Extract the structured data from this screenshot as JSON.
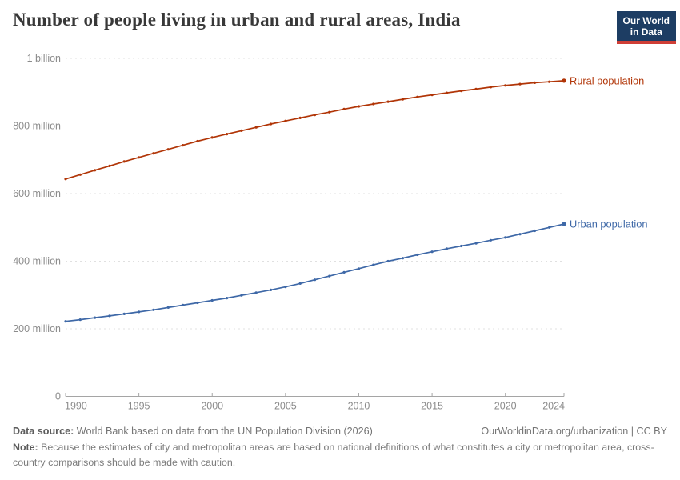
{
  "header": {
    "title": "Number of people living in urban and rural areas, India",
    "logo": {
      "line1": "Our World",
      "line2": "in Data"
    }
  },
  "footer": {
    "source_label": "Data source:",
    "source_text": "World Bank based on data from the UN Population Division (2026)",
    "license_text": "OurWorldinData.org/urbanization | CC BY",
    "note_label": "Note:",
    "note_text": "Because the estimates of city and metropolitan areas are based on national definitions of what constitutes a city or metropolitan area, cross-country comparisons should be made with caution."
  },
  "colors": {
    "title": "#383838",
    "logo_bg": "#1d3d63",
    "logo_stripe": "#cf3e36",
    "rural": "#b13507",
    "urban": "#3e68a7",
    "grid": "#e0e0e0",
    "axis": "#a5a5a5",
    "tick_text": "#8b8b8b"
  },
  "chart_data": {
    "type": "line",
    "title": "Number of people living in urban and rural areas, India",
    "unit": "people (millions)",
    "xlabel": "",
    "ylabel": "",
    "ylim": [
      0,
      1000
    ],
    "grid": "horizontal-dashed",
    "legend_position": "end-of-line-labels",
    "x_ticks": [
      1990,
      1995,
      2000,
      2005,
      2010,
      2015,
      2020,
      2024
    ],
    "y_ticks": [
      {
        "value": 0,
        "label": "0"
      },
      {
        "value": 200,
        "label": "200 million"
      },
      {
        "value": 400,
        "label": "400 million"
      },
      {
        "value": 600,
        "label": "600 million"
      },
      {
        "value": 800,
        "label": "800 million"
      },
      {
        "value": 1000,
        "label": "1 billion"
      }
    ],
    "x": [
      1990,
      1991,
      1992,
      1993,
      1994,
      1995,
      1996,
      1997,
      1998,
      1999,
      2000,
      2001,
      2002,
      2003,
      2004,
      2005,
      2006,
      2007,
      2008,
      2009,
      2010,
      2011,
      2012,
      2013,
      2014,
      2015,
      2016,
      2017,
      2018,
      2019,
      2020,
      2021,
      2022,
      2023,
      2024
    ],
    "series": [
      {
        "name": "Rural population",
        "color_key": "rural",
        "values": [
          643,
          656,
          669,
          682,
          695,
          707,
          719,
          731,
          743,
          755,
          766,
          776,
          786,
          796,
          806,
          815,
          824,
          833,
          841,
          850,
          858,
          865,
          872,
          879,
          886,
          892,
          898,
          904,
          909,
          915,
          920,
          924,
          928,
          931,
          934
        ]
      },
      {
        "name": "Urban population",
        "color_key": "urban",
        "values": [
          222,
          227,
          233,
          238,
          244,
          250,
          256,
          263,
          270,
          277,
          284,
          291,
          299,
          307,
          315,
          324,
          334,
          345,
          356,
          367,
          378,
          389,
          400,
          409,
          419,
          428,
          437,
          445,
          453,
          462,
          470,
          480,
          490,
          500,
          510
        ]
      }
    ]
  }
}
